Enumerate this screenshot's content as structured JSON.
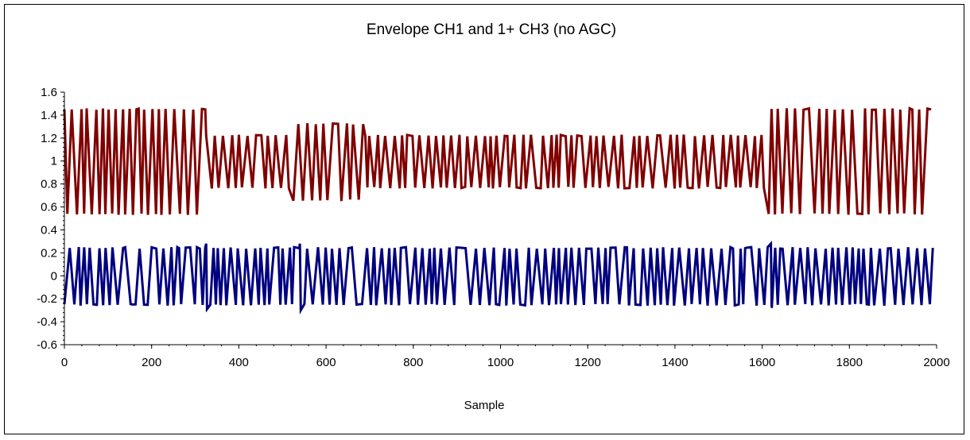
{
  "chart_data": {
    "type": "line",
    "title": "Envelope CH1 and 1+ CH3 (no AGC)",
    "xlabel": "Sample",
    "ylabel": "",
    "xlim": [
      0,
      2000
    ],
    "ylim": [
      -0.6,
      1.6
    ],
    "x_ticks": [
      "0",
      "200",
      "400",
      "600",
      "800",
      "1000",
      "1200",
      "1400",
      "1600",
      "1800",
      "2000"
    ],
    "y_ticks": [
      "1.6",
      "1.4",
      "1.2",
      "1",
      "0.8",
      "0.6",
      "0.4",
      "0.2",
      "0",
      "-0.2",
      "-0.4",
      "-0.6"
    ],
    "grid": false,
    "legend": "none",
    "series": [
      {
        "color": "#800000",
        "segments": [
          {
            "x_start": 0,
            "x_end": 325,
            "min": 0.53,
            "max": 1.46
          },
          {
            "x_start": 325,
            "x_end": 525,
            "min": 0.76,
            "max": 1.23
          },
          {
            "x_start": 525,
            "x_end": 690,
            "min": 0.65,
            "max": 1.33
          },
          {
            "x_start": 690,
            "x_end": 1615,
            "min": 0.76,
            "max": 1.23
          },
          {
            "x_start": 1615,
            "x_end": 2000,
            "min": 0.53,
            "max": 1.46
          }
        ]
      },
      {
        "color": "#000080",
        "segments": [
          {
            "x_start": 0,
            "x_end": 2000,
            "min": -0.26,
            "max": 0.25
          }
        ],
        "spikes": [
          {
            "x": 325,
            "min": -0.29,
            "max": 0.28
          },
          {
            "x": 540,
            "min": -0.3,
            "max": 0.28
          },
          {
            "x": 1620,
            "min": -0.28,
            "max": 0.28
          }
        ]
      }
    ]
  }
}
